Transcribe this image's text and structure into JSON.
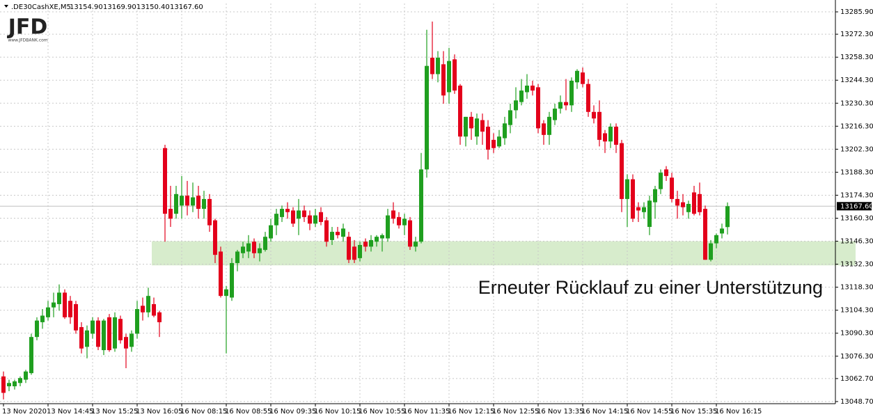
{
  "logo": {
    "text": "JFD",
    "url": "www.JFDBANK.com"
  },
  "chart_data": {
    "type": "candlestick",
    "symbol": ".DE30CashXE,M5",
    "header_values": [
      "13154.90",
      "13169.90",
      "13150.40",
      "13167.60"
    ],
    "annotation": "Erneuter Rücklauf zu einer Unterstützung",
    "up_color": "#1f9f1f",
    "down_color": "#e3001b",
    "zone": [
      13131.6,
      13146.3
    ],
    "zone_color": "#d7eccc",
    "last_price": {
      "value": 13167.6,
      "label": "13167.60"
    },
    "grid": true,
    "ylim": [
      13047.4,
      13291.0
    ],
    "yticks": [
      {
        "value": 13285.9,
        "label": "13285.90"
      },
      {
        "value": 13272.3,
        "label": "13272.30"
      },
      {
        "value": 13258.3,
        "label": "13258.30"
      },
      {
        "value": 13244.3,
        "label": "13244.30"
      },
      {
        "value": 13230.3,
        "label": "13230.30"
      },
      {
        "value": 13216.3,
        "label": "13216.30"
      },
      {
        "value": 13202.3,
        "label": "13202.30"
      },
      {
        "value": 13188.3,
        "label": "13188.30"
      },
      {
        "value": 13174.3,
        "label": "13174.30"
      },
      {
        "value": 13160.3,
        "label": "13160.30"
      },
      {
        "value": 13146.3,
        "label": "13146.30"
      },
      {
        "value": 13132.3,
        "label": "13132.30"
      },
      {
        "value": 13118.3,
        "label": "13118.30"
      },
      {
        "value": 13104.3,
        "label": "13104.30"
      },
      {
        "value": 13090.3,
        "label": "13090.30"
      },
      {
        "value": 13076.3,
        "label": "13076.30"
      },
      {
        "value": 13062.7,
        "label": "13062.70"
      },
      {
        "value": 13048.7,
        "label": "13048.70"
      }
    ],
    "categories": [
      "13 Nov 2020",
      null,
      null,
      null,
      null,
      null,
      null,
      null,
      "13 Nov 14:45",
      null,
      null,
      null,
      null,
      null,
      null,
      null,
      "13 Nov 15:25",
      null,
      null,
      null,
      null,
      null,
      null,
      null,
      "13 Nov 16:05",
      null,
      null,
      null,
      null,
      null,
      null,
      null,
      "16 Nov 08:15",
      null,
      null,
      null,
      null,
      null,
      null,
      null,
      "16 Nov 08:55",
      null,
      null,
      null,
      null,
      null,
      null,
      null,
      "16 Nov 09:35",
      null,
      null,
      null,
      null,
      null,
      null,
      null,
      "16 Nov 10:15",
      null,
      null,
      null,
      null,
      null,
      null,
      null,
      "16 Nov 10:55",
      null,
      null,
      null,
      null,
      null,
      null,
      null,
      "16 Nov 11:35",
      null,
      null,
      null,
      null,
      null,
      null,
      null,
      "16 Nov 12:15",
      null,
      null,
      null,
      null,
      null,
      null,
      null,
      "16 Nov 12:55",
      null,
      null,
      null,
      null,
      null,
      null,
      null,
      "16 Nov 13:35",
      null,
      null,
      null,
      null,
      null,
      null,
      null,
      "16 Nov 14:15",
      null,
      null,
      null,
      null,
      null,
      null,
      null,
      "16 Nov 14:55",
      null,
      null,
      null,
      null,
      null,
      null,
      null,
      "16 Nov 15:35",
      null,
      null,
      null,
      null,
      null,
      null,
      null,
      "16 Nov 16:15",
      null,
      null
    ],
    "ohlc": [
      [
        13064,
        13067,
        13050,
        13054
      ],
      [
        13058,
        13062,
        13055,
        13060
      ],
      [
        13058,
        13062,
        13056,
        13061
      ],
      [
        13060,
        13064,
        13058,
        13063
      ],
      [
        13062,
        13068,
        13060,
        13067
      ],
      [
        13066,
        13090,
        13065,
        13088
      ],
      [
        13088,
        13100,
        13086,
        13098
      ],
      [
        13097,
        13105,
        13093,
        13101
      ],
      [
        13100,
        13110,
        13098,
        13106
      ],
      [
        13106,
        13115,
        13100,
        13109
      ],
      [
        13108,
        13120,
        13104,
        13115
      ],
      [
        13115,
        13117,
        13099,
        13100
      ],
      [
        13110,
        13113,
        13096,
        13100
      ],
      [
        13108,
        13110,
        13090,
        13092
      ],
      [
        13094,
        13097,
        13078,
        13081
      ],
      [
        13082,
        13095,
        13075,
        13092
      ],
      [
        13090,
        13100,
        13087,
        13098
      ],
      [
        13098,
        13100,
        13080,
        13082
      ],
      [
        13080,
        13099,
        13077,
        13098
      ],
      [
        13100,
        13102,
        13079,
        13080
      ],
      [
        13081,
        13103,
        13079,
        13100
      ],
      [
        13099,
        13101,
        13084,
        13086
      ],
      [
        13088,
        13090,
        13069,
        13081
      ],
      [
        13082,
        13092,
        13079,
        13090
      ],
      [
        13090,
        13110,
        13087,
        13105
      ],
      [
        13107,
        13112,
        13098,
        13103
      ],
      [
        13103,
        13118,
        13100,
        13113
      ],
      [
        13108,
        13112,
        13100,
        13101
      ],
      [
        13103,
        13104,
        13088,
        13097
      ],
      [
        13203,
        13205,
        13146,
        13163
      ],
      [
        13166,
        13180,
        13155,
        13160
      ],
      [
        13163,
        13180,
        13160,
        13175
      ],
      [
        13168,
        13186,
        13160,
        13174
      ],
      [
        13174,
        13183,
        13162,
        13168
      ],
      [
        13168,
        13182,
        13164,
        13173
      ],
      [
        13174,
        13180,
        13160,
        13166
      ],
      [
        13166,
        13177,
        13160,
        13172
      ],
      [
        13172,
        13175,
        13152,
        13156
      ],
      [
        13159,
        13160,
        13133,
        13138
      ],
      [
        13140,
        13143,
        13112,
        13113
      ],
      [
        13113,
        13119,
        13078,
        13117
      ],
      [
        13112,
        13136,
        13110,
        13133
      ],
      [
        13133,
        13141,
        13128,
        13140
      ],
      [
        13139,
        13146,
        13136,
        13143
      ],
      [
        13140,
        13150,
        13136,
        13145
      ],
      [
        13146,
        13148,
        13136,
        13139
      ],
      [
        13139,
        13145,
        13134,
        13142
      ],
      [
        13141,
        13152,
        13140,
        13149
      ],
      [
        13148,
        13160,
        13146,
        13156
      ],
      [
        13156,
        13166,
        13150,
        13163
      ],
      [
        13161,
        13168,
        13158,
        13166
      ],
      [
        13166,
        13170,
        13160,
        13164
      ],
      [
        13165,
        13167,
        13155,
        13157
      ],
      [
        13160,
        13172,
        13150,
        13165
      ],
      [
        13165,
        13168,
        13158,
        13161
      ],
      [
        13162,
        13165,
        13153,
        13157
      ],
      [
        13157,
        13166,
        13155,
        13162
      ],
      [
        13164,
        13167,
        13156,
        13158
      ],
      [
        13159,
        13161,
        13143,
        13146
      ],
      [
        13147,
        13155,
        13144,
        13152
      ],
      [
        13152,
        13155,
        13148,
        13150
      ],
      [
        13149,
        13157,
        13146,
        13154
      ],
      [
        13149,
        13152,
        13133,
        13135
      ],
      [
        13143,
        13147,
        13133,
        13135
      ],
      [
        13136,
        13146,
        13134,
        13144
      ],
      [
        13146,
        13148,
        13140,
        13143
      ],
      [
        13143,
        13150,
        13140,
        13147
      ],
      [
        13146,
        13150,
        13143,
        13149
      ],
      [
        13148,
        13151,
        13140,
        13150
      ],
      [
        13148,
        13166,
        13146,
        13162
      ],
      [
        13165,
        13170,
        13157,
        13160
      ],
      [
        13161,
        13164,
        13154,
        13156
      ],
      [
        13156,
        13163,
        13150,
        13160
      ],
      [
        13159,
        13161,
        13141,
        13143
      ],
      [
        13143,
        13149,
        13140,
        13146
      ],
      [
        13146,
        13200,
        13145,
        13190
      ],
      [
        13190,
        13275,
        13185,
        13253
      ],
      [
        13258,
        13280,
        13245,
        13248
      ],
      [
        13248,
        13262,
        13243,
        13258
      ],
      [
        13254,
        13262,
        13230,
        13235
      ],
      [
        13237,
        13264,
        13230,
        13256
      ],
      [
        13257,
        13260,
        13236,
        13238
      ],
      [
        13241,
        13242,
        13205,
        13210
      ],
      [
        13210,
        13222,
        13204,
        13222
      ],
      [
        13222,
        13225,
        13208,
        13215
      ],
      [
        13210,
        13224,
        13205,
        13221
      ],
      [
        13220,
        13224,
        13205,
        13213
      ],
      [
        13216,
        13220,
        13196,
        13202
      ],
      [
        13208,
        13212,
        13200,
        13203
      ],
      [
        13204,
        13214,
        13203,
        13210
      ],
      [
        13209,
        13222,
        13205,
        13218
      ],
      [
        13217,
        13230,
        13212,
        13226
      ],
      [
        13226,
        13240,
        13221,
        13232
      ],
      [
        13231,
        13245,
        13229,
        13238
      ],
      [
        13237,
        13248,
        13233,
        13241
      ],
      [
        13241,
        13244,
        13235,
        13238
      ],
      [
        13240,
        13242,
        13212,
        13215
      ],
      [
        13218,
        13220,
        13205,
        13211
      ],
      [
        13211,
        13225,
        13205,
        13222
      ],
      [
        13220,
        13230,
        13217,
        13227
      ],
      [
        13227,
        13235,
        13224,
        13231
      ],
      [
        13231,
        13245,
        13226,
        13229
      ],
      [
        13229,
        13246,
        13225,
        13244
      ],
      [
        13243,
        13251,
        13239,
        13250
      ],
      [
        13249,
        13252,
        13240,
        13242
      ],
      [
        13242,
        13245,
        13222,
        13225
      ],
      [
        13225,
        13229,
        13218,
        13221
      ],
      [
        13225,
        13232,
        13204,
        13208
      ],
      [
        13212,
        13214,
        13200,
        13207
      ],
      [
        13207,
        13218,
        13203,
        13216
      ],
      [
        13216,
        13218,
        13200,
        13205
      ],
      [
        13206,
        13208,
        13164,
        13172
      ],
      [
        13172,
        13187,
        13155,
        13184
      ],
      [
        13184,
        13187,
        13158,
        13160
      ],
      [
        13167,
        13170,
        13158,
        13165
      ],
      [
        13164,
        13170,
        13160,
        13167
      ],
      [
        13155,
        13174,
        13150,
        13171
      ],
      [
        13170,
        13180,
        13160,
        13178
      ],
      [
        13178,
        13190,
        13175,
        13188
      ],
      [
        13190,
        13192,
        13183,
        13186
      ],
      [
        13185,
        13188,
        13170,
        13172
      ],
      [
        13172,
        13177,
        13160,
        13168
      ],
      [
        13170,
        13175,
        13162,
        13167
      ],
      [
        13164,
        13171,
        13160,
        13169
      ],
      [
        13176,
        13180,
        13162,
        13163
      ],
      [
        13175,
        13182,
        13162,
        13164
      ],
      [
        13166,
        13168,
        13135,
        13135
      ],
      [
        13135,
        13147,
        13134,
        13145
      ],
      [
        13145,
        13151,
        13142,
        13150
      ],
      [
        13151,
        13157,
        13148,
        13154
      ],
      [
        13154.9,
        13169.9,
        13150.4,
        13167.6
      ]
    ]
  }
}
